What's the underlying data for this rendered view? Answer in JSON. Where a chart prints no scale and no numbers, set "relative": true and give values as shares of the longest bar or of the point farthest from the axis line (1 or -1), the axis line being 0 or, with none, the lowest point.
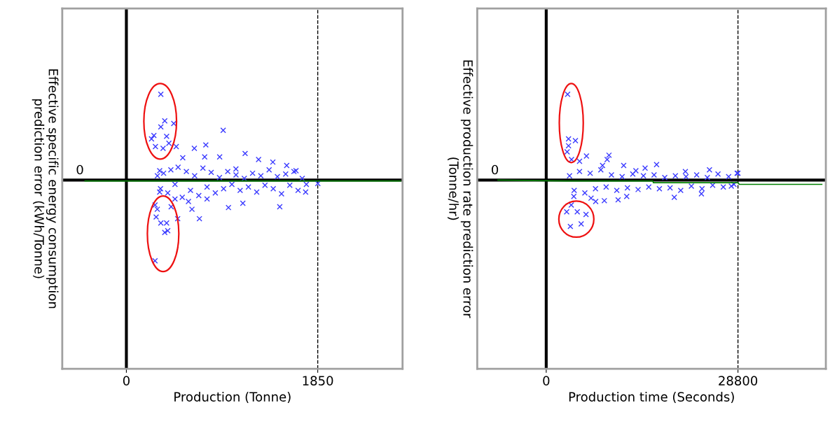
{
  "chart_data": [
    {
      "type": "scatter",
      "xlabel": "Production (Tonne)",
      "ylabel": "Effective specific energy consumption\nprediction error (kWh/Tonne)",
      "relative": true,
      "xlim": [
        -620,
        2670
      ],
      "xticks": [
        0,
        1850
      ],
      "tick_labels": "x",
      "grid": false,
      "legend": false,
      "series": [
        {
          "type": "scatter",
          "marker": "cross",
          "color": "#3a3aff",
          "x": [
            333,
            371,
            333,
            458,
            266,
            389,
            243,
            281,
            411,
            355,
            482,
            936,
            768,
            277,
            371,
            400,
            333,
            389,
            706,
            496,
            288,
            299,
            433,
            634,
            1483,
            987,
            1126,
            1733,
            1851,
            657,
            1148,
            902,
            757,
            1278,
            1550,
            1640,
            1416,
            545,
            322,
            1059,
            300,
            330,
            360,
            400,
            430,
            470,
            500,
            540,
            580,
            620,
            660,
            700,
            740,
            780,
            820,
            860,
            900,
            940,
            980,
            1020,
            1060,
            1100,
            1140,
            1180,
            1220,
            1260,
            1300,
            1340,
            1380,
            1420,
            1460,
            1500,
            1540,
            1580,
            1620,
            1660,
            1700,
            1740,
            277,
            322,
            470,
            600,
            780
          ],
          "values": [
            1.0,
            0.69,
            0.62,
            0.66,
            0.52,
            0.51,
            0.48,
            0.39,
            0.43,
            0.37,
            0.39,
            0.58,
            0.41,
            -0.94,
            -0.61,
            -0.59,
            -0.5,
            -0.5,
            -0.45,
            -0.45,
            -0.43,
            -0.34,
            -0.31,
            -0.34,
            -0.31,
            -0.32,
            -0.27,
            -0.14,
            -0.04,
            0.37,
            0.31,
            0.27,
            0.27,
            0.24,
            0.17,
            0.11,
            0.21,
            0.26,
            0.11,
            0.13,
            0.05,
            -0.1,
            0.08,
            -0.15,
            0.12,
            -0.05,
            0.15,
            -0.2,
            0.1,
            -0.12,
            0.05,
            -0.18,
            0.14,
            -0.08,
            0.09,
            -0.15,
            0.03,
            -0.1,
            0.1,
            -0.05,
            0.06,
            -0.12,
            0.02,
            -0.08,
            0.08,
            -0.14,
            0.05,
            -0.06,
            0.12,
            -0.1,
            0.04,
            -0.16,
            0.07,
            -0.06,
            0.1,
            -0.12,
            0.02,
            -0.05,
            -0.29,
            -0.14,
            -0.22,
            -0.25,
            -0.22
          ]
        },
        {
          "type": "line",
          "color": "#008000",
          "x": [
            -400,
            2650
          ],
          "values": [
            -0.01,
            -0.01
          ]
        }
      ],
      "ref_lines": [
        {
          "axis": "y",
          "value": 0,
          "label": "0",
          "color": "#000000",
          "line_style": "solid"
        },
        {
          "axis": "x",
          "value": 0,
          "color": "#000000",
          "line_style": "solid"
        },
        {
          "axis": "x",
          "value": 1850,
          "color": "#000000",
          "line_style": "dashed"
        }
      ]
    },
    {
      "type": "scatter",
      "xlabel": "Production time (Seconds)",
      "ylabel": "Effective production rate prediction error\n(Tonne/hr)",
      "relative": true,
      "xlim": [
        -10360,
        42000
      ],
      "xticks": [
        0,
        28800
      ],
      "tick_labels": "x",
      "grid": false,
      "legend": false,
      "series": [
        {
          "type": "scatter",
          "marker": "cross",
          "color": "#3a3aff",
          "x": [
            3212,
            3350,
            4385,
            3350,
            3143,
            3764,
            3074,
            4662,
            5975,
            3626,
            5250,
            6044,
            9428,
            9152,
            3800,
            5006,
            16576,
            11636,
            14850,
            8460,
            20900,
            24520,
            28670,
            13470,
            4144,
            7430,
            8730,
            10800,
            12090,
            19240,
            23310,
            27800,
            6734,
            3500,
            4200,
            5000,
            5800,
            6600,
            7400,
            8200,
            9000,
            9800,
            10600,
            11400,
            12200,
            13000,
            13800,
            14600,
            15400,
            16200,
            17000,
            17800,
            18600,
            19400,
            20200,
            21000,
            21800,
            22600,
            23400,
            24200,
            25000,
            25800,
            26600,
            27400,
            28200,
            28800
          ],
          "values": [
            1.0,
            0.48,
            0.46,
            0.4,
            0.33,
            -0.29,
            -0.37,
            -0.37,
            -0.4,
            -0.54,
            -0.51,
            0.28,
            0.29,
            0.24,
            0.24,
            0.22,
            0.18,
            0.17,
            0.14,
            0.17,
            0.1,
            0.12,
            0.08,
            0.11,
            -0.19,
            -0.25,
            -0.24,
            -0.23,
            -0.19,
            -0.2,
            -0.16,
            -0.07,
            -0.21,
            0.05,
            -0.12,
            0.1,
            -0.15,
            0.08,
            -0.1,
            0.12,
            -0.08,
            0.06,
            -0.12,
            0.04,
            -0.09,
            0.07,
            -0.11,
            0.05,
            -0.08,
            0.06,
            -0.1,
            0.03,
            -0.09,
            0.05,
            -0.12,
            0.04,
            -0.07,
            0.06,
            -0.1,
            0.03,
            -0.06,
            0.07,
            -0.08,
            0.04,
            -0.05,
            0.08
          ]
        },
        {
          "type": "line",
          "color": "#008000",
          "x": [
            -7250,
            3000,
            16000,
            16100,
            28800,
            29000,
            41400
          ],
          "values": [
            0.0,
            -0.01,
            -0.01,
            -0.03,
            -0.03,
            -0.05,
            -0.05
          ]
        }
      ],
      "ref_lines": [
        {
          "axis": "y",
          "value": 0,
          "label": "0",
          "color": "#000000",
          "line_style": "solid"
        },
        {
          "axis": "x",
          "value": 0,
          "color": "#000000",
          "line_style": "solid"
        },
        {
          "axis": "x",
          "value": 28800,
          "color": "#000000",
          "line_style": "dashed"
        }
      ]
    }
  ]
}
